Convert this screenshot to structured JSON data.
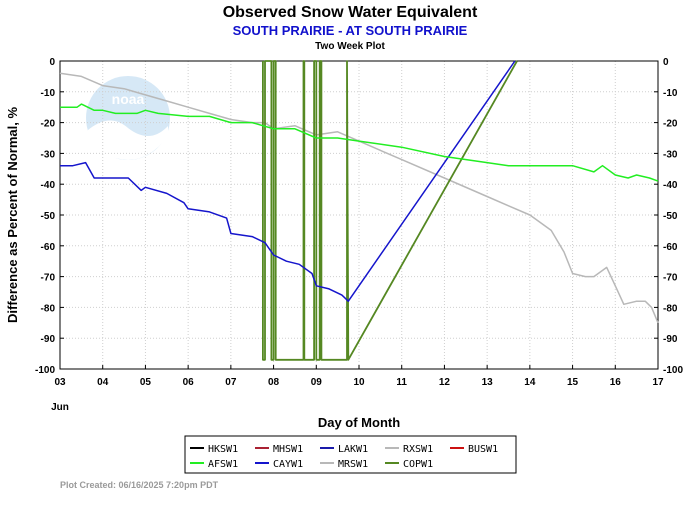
{
  "chart_data": {
    "type": "line",
    "title": "Observed Snow Water Equivalent",
    "subtitle": "SOUTH PRAIRIE - AT SOUTH PRAIRIE",
    "subsubtitle": "Two Week Plot",
    "xlabel": "Day of Month",
    "ylabel": "Difference as Percent of Normal, %",
    "month_label": "Jun",
    "xlim": [
      3,
      17
    ],
    "ylim": [
      -100,
      0
    ],
    "x_ticks": [
      "03",
      "04",
      "05",
      "06",
      "07",
      "08",
      "09",
      "10",
      "11",
      "12",
      "13",
      "14",
      "15",
      "16",
      "17"
    ],
    "y_ticks": [
      0,
      -10,
      -20,
      -30,
      -40,
      -50,
      -60,
      -70,
      -80,
      -90,
      -100
    ],
    "grid": true,
    "legend_position": "bottom",
    "watermark": "noaa",
    "series": [
      {
        "name": "HKSW1",
        "color": "#000000",
        "x": [],
        "y": []
      },
      {
        "name": "MHSW1",
        "color": "#aa2233",
        "x": [],
        "y": []
      },
      {
        "name": "LAKW1",
        "color": "#1a1aaa",
        "x": [],
        "y": []
      },
      {
        "name": "RXSW1",
        "color": "#b8b8b8",
        "x": [],
        "y": []
      },
      {
        "name": "BUSW1",
        "color": "#cc1111",
        "x": [],
        "y": []
      },
      {
        "name": "AFSW1",
        "color": "#22ee22",
        "x": [
          3.0,
          3.4,
          3.5,
          3.8,
          4.0,
          4.3,
          4.8,
          5.0,
          5.3,
          6.0,
          6.5,
          7.0,
          7.5,
          8.0,
          8.5,
          9.0,
          9.5,
          10.0,
          11.0,
          12.0,
          13.0,
          13.5,
          14.0,
          15.0,
          15.5,
          15.7,
          16.0,
          16.3,
          16.5,
          16.8,
          17.0
        ],
        "y": [
          -15,
          -15,
          -14,
          -16,
          -16,
          -17,
          -17,
          -16,
          -17,
          -18,
          -18,
          -20,
          -20,
          -22,
          -22,
          -25,
          -25,
          -26,
          -28,
          -31,
          -33,
          -34,
          -34,
          -34,
          -36,
          -34,
          -37,
          -38,
          -37,
          -38,
          -39
        ]
      },
      {
        "name": "CAYW1",
        "color": "#1515cc",
        "x": [
          3.0,
          3.3,
          3.6,
          3.8,
          4.0,
          4.6,
          4.9,
          5.0,
          5.5,
          5.9,
          6.0,
          6.5,
          6.9,
          7.0,
          7.5,
          7.8,
          8.0,
          8.3,
          8.6,
          8.9,
          9.0,
          9.3,
          9.6,
          9.75,
          13.65
        ],
        "y": [
          -34,
          -34,
          -33,
          -38,
          -38,
          -38,
          -42,
          -41,
          -43,
          -46,
          -48,
          -49,
          -51,
          -56,
          -57,
          -59,
          -63,
          -65,
          -66,
          -69,
          -73,
          -74,
          -76,
          -78,
          0
        ]
      },
      {
        "name": "MRSW1",
        "color": "#b8b8b8",
        "x": [
          3.0,
          3.5,
          4.0,
          4.5,
          5.0,
          5.5,
          6.0,
          6.5,
          7.0,
          7.5,
          7.8,
          8.0,
          8.5,
          9.0,
          9.5,
          10.0,
          11.0,
          12.0,
          13.0,
          13.5,
          14.0,
          14.5,
          14.8,
          15.0,
          15.3,
          15.5,
          15.8,
          16.0,
          16.2,
          16.5,
          16.7,
          16.85,
          17.0
        ],
        "y": [
          -4,
          -5,
          -8,
          -9,
          -11,
          -13,
          -15,
          -17,
          -19,
          -20,
          -20,
          -22,
          -21,
          -24,
          -23,
          -26,
          -32,
          -38,
          -44,
          -47,
          -50,
          -55,
          -62,
          -69,
          -70,
          -70,
          -67,
          -73,
          -79,
          -78,
          -78,
          -80,
          -85
        ]
      },
      {
        "name": "COPW1",
        "color": "#558822",
        "x": [
          7.75,
          7.75,
          7.8,
          7.8,
          7.95,
          7.95,
          8.0,
          8.0,
          8.05,
          8.05,
          8.7,
          8.7,
          8.72,
          8.72,
          8.95,
          8.95,
          9.0,
          9.0,
          9.08,
          9.08,
          9.12,
          9.12,
          9.72,
          9.72,
          9.75,
          13.7
        ],
        "y": [
          0,
          -97,
          -97,
          0,
          0,
          -97,
          -97,
          0,
          0,
          -97,
          -97,
          0,
          0,
          -97,
          -97,
          0,
          0,
          -97,
          -97,
          0,
          0,
          -97,
          -97,
          0,
          -97,
          0
        ]
      }
    ]
  },
  "footer": {
    "plot_created": "Plot Created: 06/16/2025 7:20pm PDT"
  }
}
